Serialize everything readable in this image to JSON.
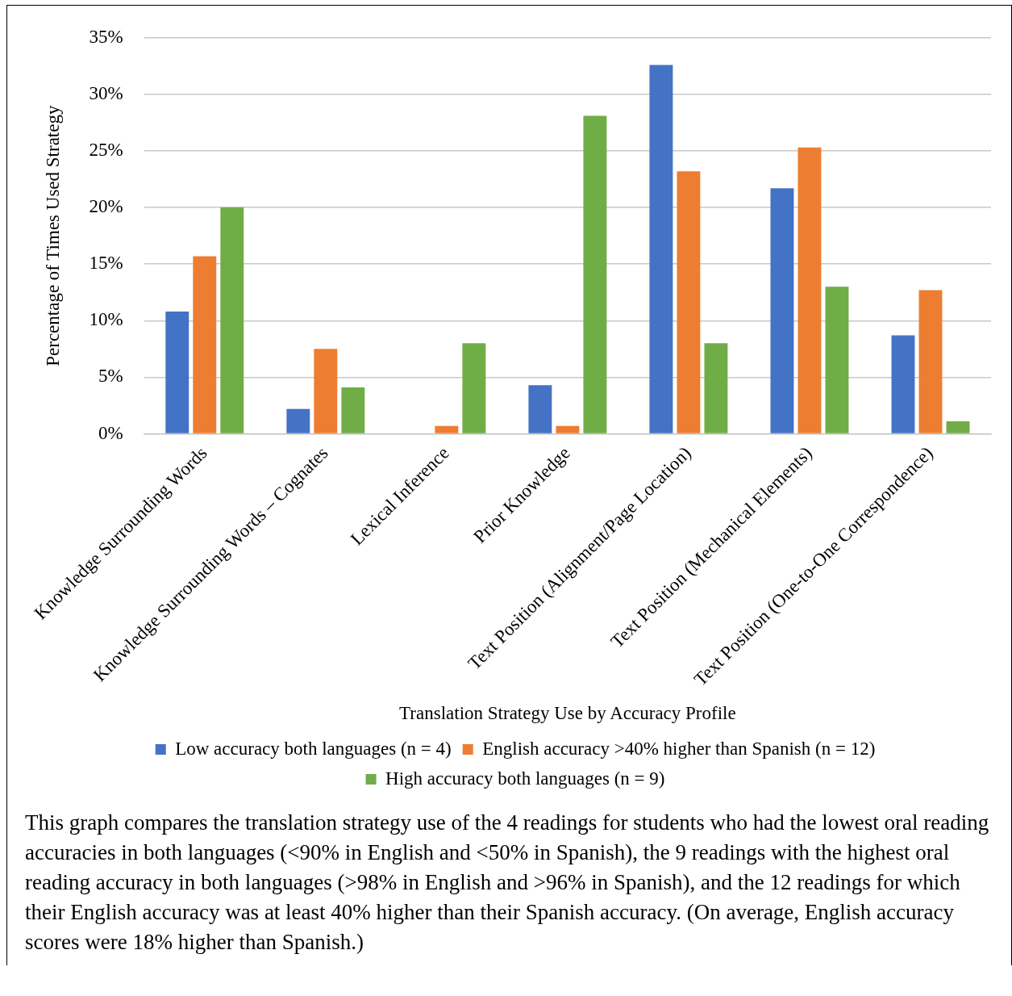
{
  "chart_data": {
    "type": "bar",
    "xlabel": "Translation Strategy Use by Accuracy Profile",
    "ylabel": "Percentage of Times Used Strategy",
    "categories": [
      "Knowledge Surrounding Words",
      "Knowledge Surrounding Words – Cognates",
      "Lexical Inference",
      "Prior Knowledge",
      "Text Position (Alignment/Page Location)",
      "Text Position (Mechanical Elements)",
      "Text Position (One-to-One Correspondence)"
    ],
    "series": [
      {
        "name": "Low accuracy both languages (n = 4)",
        "color": "#4472c4",
        "values": [
          10.8,
          2.2,
          0,
          4.3,
          32.6,
          21.7,
          8.7
        ]
      },
      {
        "name": "English accuracy >40% higher than Spanish (n = 12)",
        "color": "#ed7d31",
        "values": [
          15.7,
          7.5,
          0.7,
          0.7,
          23.2,
          25.3,
          12.7
        ]
      },
      {
        "name": "High accuracy both languages (n = 9)",
        "color": "#70ad47",
        "values": [
          20,
          4.1,
          8,
          28.1,
          8,
          13,
          1.1
        ]
      }
    ],
    "ylim": [
      0,
      35
    ],
    "yticks": [
      {
        "value": 0,
        "label": "0%"
      },
      {
        "value": 5,
        "label": "5%"
      },
      {
        "value": 10,
        "label": "10%"
      },
      {
        "value": 15,
        "label": "15%"
      },
      {
        "value": 20,
        "label": "20%"
      },
      {
        "value": 25,
        "label": "25%"
      },
      {
        "value": 30,
        "label": "30%"
      },
      {
        "value": 35,
        "label": "35%"
      }
    ],
    "grid": "y",
    "legend": "bottom",
    "annotations": [
      "This graph compares the translation strategy use of the 4 readings for students who  had the lowest oral reading accuracies in both languages (<90% in English and <50% in Spanish), the 9 readings with the highest oral reading accuracy in both languages (>98% in English and >96% in Spanish), and the 12 readings for which their English accuracy was at least 40% higher than their Spanish accuracy.  (On average, English accuracy scores were 18% higher than Spanish.)"
    ]
  }
}
